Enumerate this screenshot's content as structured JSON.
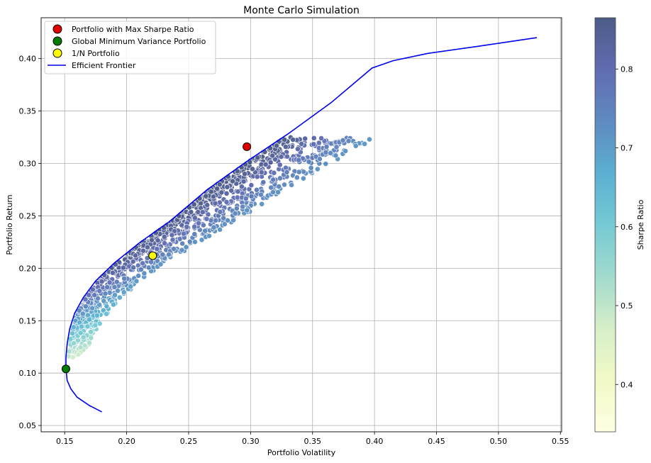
{
  "chart_data": {
    "type": "scatter",
    "title": "Monte Carlo Simulation",
    "xlabel": "Portfolio Volatility",
    "ylabel": "Portfolio Return",
    "xlim": [
      0.131,
      0.551
    ],
    "ylim": [
      0.044,
      0.439
    ],
    "xticks": [
      "0.15",
      "0.20",
      "0.25",
      "0.30",
      "0.35",
      "0.40",
      "0.45",
      "0.50",
      "0.55"
    ],
    "yticks": [
      "0.05",
      "0.10",
      "0.15",
      "0.20",
      "0.25",
      "0.30",
      "0.35",
      "0.40"
    ],
    "grid": true,
    "legend_position": "top-left",
    "colorbar": {
      "label": "Sharpe Ratio",
      "range": [
        0.34,
        0.865
      ],
      "ticks": [
        "0.4",
        "0.5",
        "0.6",
        "0.7",
        "0.8"
      ],
      "colormap": "YlGnBu"
    },
    "markers": [
      {
        "name": "Portfolio with Max Sharpe Ratio",
        "x": 0.297,
        "y": 0.316,
        "color": "#e00000"
      },
      {
        "name": "Global Minimum Variance Portfolio",
        "x": 0.151,
        "y": 0.104,
        "color": "#007a00"
      },
      {
        "name": "1/N Portfolio",
        "x": 0.221,
        "y": 0.212,
        "color": "#ffff00"
      }
    ],
    "frontier": {
      "name": "Efficient Frontier",
      "color": "#0000ee",
      "x": [
        0.18,
        0.17,
        0.16,
        0.155,
        0.152,
        0.151,
        0.151,
        0.152,
        0.154,
        0.158,
        0.165,
        0.175,
        0.19,
        0.21,
        0.235,
        0.265,
        0.297,
        0.33,
        0.365,
        0.398,
        0.415,
        0.443,
        0.485,
        0.531
      ],
      "y": [
        0.063,
        0.069,
        0.077,
        0.085,
        0.093,
        0.104,
        0.115,
        0.128,
        0.142,
        0.157,
        0.172,
        0.188,
        0.205,
        0.224,
        0.245,
        0.275,
        0.302,
        0.328,
        0.358,
        0.391,
        0.398,
        0.405,
        0.412,
        0.42
      ]
    },
    "scatter_points": 1200
  }
}
